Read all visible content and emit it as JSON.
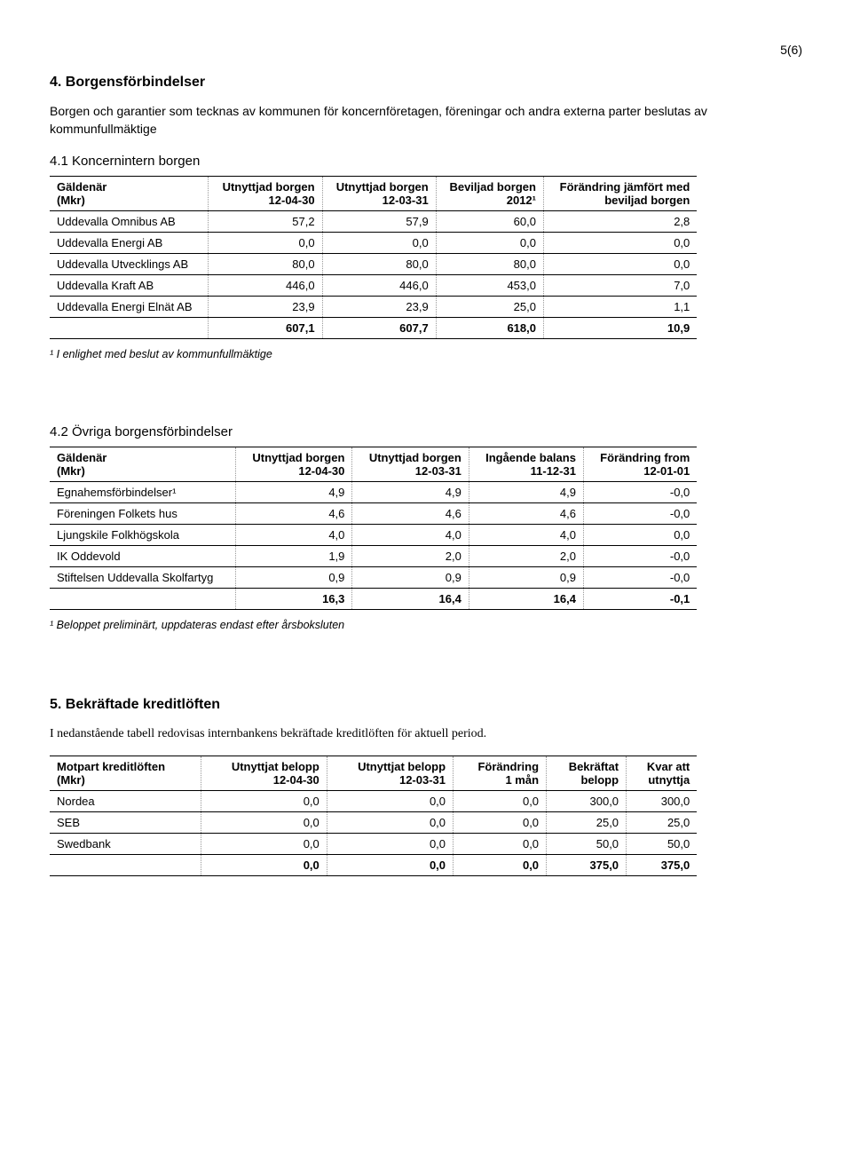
{
  "pageNumber": "5(6)",
  "section4": {
    "heading": "4. Borgensförbindelser",
    "intro": "Borgen och garantier som tecknas av kommunen för koncernföretagen, föreningar och andra externa parter beslutas av kommunfullmäktige"
  },
  "section4_1": {
    "heading": "4.1 Koncernintern borgen",
    "col0a": "Gäldenär",
    "col0b": "(Mkr)",
    "col1a": "Utnyttjad borgen",
    "col1b": "12-04-30",
    "col2a": "Utnyttjad borgen",
    "col2b": "12-03-31",
    "col3a": "Beviljad borgen",
    "col3b": "2012¹",
    "col4a": "Förändring jämfört med",
    "col4b": "beviljad borgen",
    "rows": [
      {
        "name": "Uddevalla Omnibus AB",
        "c1": "57,2",
        "c2": "57,9",
        "c3": "60,0",
        "c4": "2,8"
      },
      {
        "name": "Uddevalla Energi AB",
        "c1": "0,0",
        "c2": "0,0",
        "c3": "0,0",
        "c4": "0,0"
      },
      {
        "name": "Uddevalla Utvecklings AB",
        "c1": "80,0",
        "c2": "80,0",
        "c3": "80,0",
        "c4": "0,0"
      },
      {
        "name": "Uddevalla Kraft AB",
        "c1": "446,0",
        "c2": "446,0",
        "c3": "453,0",
        "c4": "7,0"
      },
      {
        "name": "Uddevalla Energi Elnät AB",
        "c1": "23,9",
        "c2": "23,9",
        "c3": "25,0",
        "c4": "1,1"
      }
    ],
    "total": {
      "name": "",
      "c1": "607,1",
      "c2": "607,7",
      "c3": "618,0",
      "c4": "10,9"
    },
    "footnote": "¹ I enlighet med beslut av kommunfullmäktige"
  },
  "section4_2": {
    "heading": "4.2 Övriga borgensförbindelser",
    "col0a": "Gäldenär",
    "col0b": "(Mkr)",
    "col1a": "Utnyttjad borgen",
    "col1b": "12-04-30",
    "col2a": "Utnyttjad borgen",
    "col2b": "12-03-31",
    "col3a": "Ingående balans",
    "col3b": "11-12-31",
    "col4a": "Förändring from",
    "col4b": "12-01-01",
    "rows": [
      {
        "name": "Egnahemsförbindelser¹",
        "c1": "4,9",
        "c2": "4,9",
        "c3": "4,9",
        "c4": "-0,0"
      },
      {
        "name": "Föreningen Folkets hus",
        "c1": "4,6",
        "c2": "4,6",
        "c3": "4,6",
        "c4": "-0,0"
      },
      {
        "name": "Ljungskile Folkhögskola",
        "c1": "4,0",
        "c2": "4,0",
        "c3": "4,0",
        "c4": "0,0"
      },
      {
        "name": "IK Oddevold",
        "c1": "1,9",
        "c2": "2,0",
        "c3": "2,0",
        "c4": "-0,0"
      },
      {
        "name": "Stiftelsen Uddevalla Skolfartyg",
        "c1": "0,9",
        "c2": "0,9",
        "c3": "0,9",
        "c4": "-0,0"
      }
    ],
    "total": {
      "name": "",
      "c1": "16,3",
      "c2": "16,4",
      "c3": "16,4",
      "c4": "-0,1"
    },
    "footnote": "¹ Beloppet preliminärt, uppdateras endast efter årsboksluten"
  },
  "section5": {
    "heading": "5. Bekräftade kreditlöften",
    "intro": "I nedanstående tabell redovisas internbankens bekräftade kreditlöften för aktuell period.",
    "col0a": "Motpart kreditlöften",
    "col0b": "(Mkr)",
    "col1a": "Utnyttjat belopp",
    "col1b": "12-04-30",
    "col2a": "Utnyttjat belopp",
    "col2b": "12-03-31",
    "col3a": "Förändring",
    "col3b": "1 mån",
    "col4a": "Bekräftat",
    "col4b": "belopp",
    "col5a": "Kvar att",
    "col5b": "utnyttja",
    "rows": [
      {
        "name": "Nordea",
        "c1": "0,0",
        "c2": "0,0",
        "c3": "0,0",
        "c4": "300,0",
        "c5": "300,0"
      },
      {
        "name": "SEB",
        "c1": "0,0",
        "c2": "0,0",
        "c3": "0,0",
        "c4": "25,0",
        "c5": "25,0"
      },
      {
        "name": "Swedbank",
        "c1": "0,0",
        "c2": "0,0",
        "c3": "0,0",
        "c4": "50,0",
        "c5": "50,0"
      }
    ],
    "total": {
      "name": "",
      "c1": "0,0",
      "c2": "0,0",
      "c3": "0,0",
      "c4": "375,0",
      "c5": "375,0"
    }
  },
  "colors": {
    "text": "#000000",
    "bg": "#ffffff",
    "border": "#000000",
    "dotted": "#999999"
  }
}
